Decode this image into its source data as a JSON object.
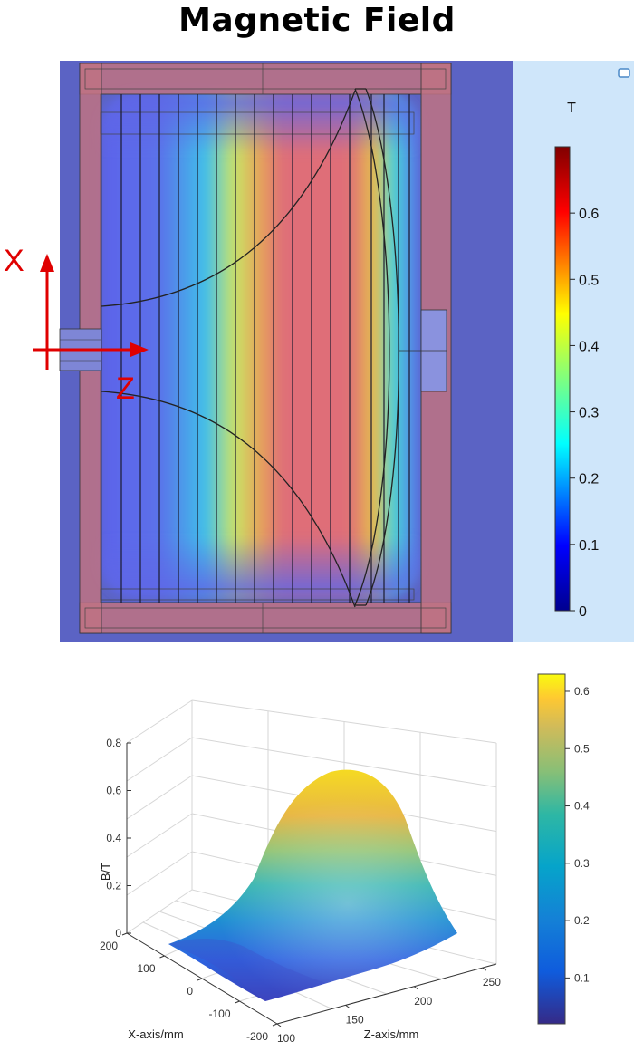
{
  "title": "Magnetic Field",
  "chart_data": [
    {
      "type": "heatmap",
      "subtype": "2d-field-map",
      "unit": "T",
      "colorbar_ticks": [
        0,
        0.1,
        0.2,
        0.3,
        0.4,
        0.5,
        0.6
      ],
      "colorbar_range": [
        0,
        0.7
      ],
      "axis_labels": [
        "X",
        "Z"
      ],
      "colors": {
        "background": "#5b63c4",
        "frame": "#c07282",
        "panel": "#cfe6fa",
        "axis_arrow": "#e00000"
      }
    },
    {
      "type": "surface",
      "xlabel": "Z-axis/mm",
      "ylabel": "X-axis/mm",
      "zlabel": "B/T",
      "x_ticks": [
        100,
        150,
        200,
        250
      ],
      "y_ticks": [
        -200,
        -100,
        0,
        100,
        200
      ],
      "z_ticks": [
        0,
        0.2,
        0.4,
        0.6,
        0.8
      ],
      "z_tick_labels": [
        "0",
        "0.2",
        "0.4",
        "0.6",
        "0.8"
      ],
      "xlim": [
        100,
        260
      ],
      "ylim": [
        -200,
        200
      ],
      "zlim": [
        0,
        0.8
      ],
      "peak": 0.62,
      "colorbar_ticks": [
        0.1,
        0.2,
        0.3,
        0.4,
        0.5,
        0.6
      ],
      "colorbar_range": [
        0.02,
        0.63
      ],
      "colormap": "parula"
    }
  ]
}
